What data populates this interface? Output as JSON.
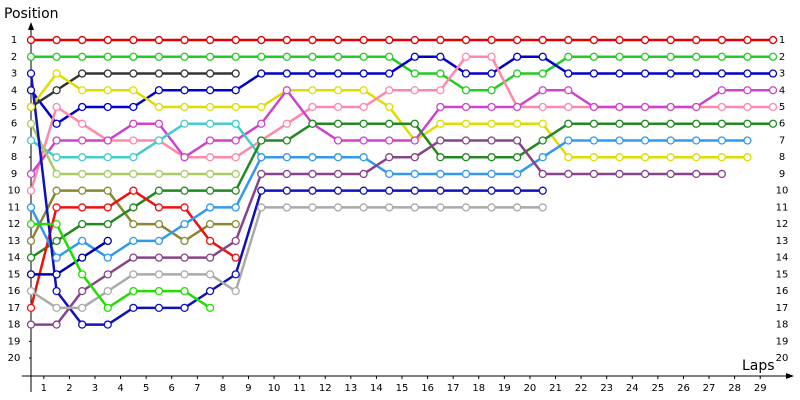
{
  "chart_data": {
    "type": "line",
    "y_label": "Position",
    "x_label": "Laps",
    "x": [
      0,
      1,
      2,
      3,
      4,
      5,
      6,
      7,
      8,
      9,
      10,
      11,
      12,
      13,
      14,
      15,
      16,
      17,
      18,
      19,
      20,
      21,
      22,
      23,
      24,
      25,
      26,
      27,
      28,
      29
    ],
    "xlim": [
      0,
      29
    ],
    "xticks": [
      {
        "value": 0.5,
        "label": "1"
      },
      {
        "value": 1.5,
        "label": "2"
      },
      {
        "value": 2.5,
        "label": "3"
      },
      {
        "value": 3.5,
        "label": "4"
      },
      {
        "value": 4.5,
        "label": "5"
      },
      {
        "value": 5.5,
        "label": "6"
      },
      {
        "value": 6.5,
        "label": "7"
      },
      {
        "value": 7.5,
        "label": "8"
      },
      {
        "value": 8.5,
        "label": "9"
      },
      {
        "value": 9.5,
        "label": "10"
      },
      {
        "value": 10.5,
        "label": "11"
      },
      {
        "value": 11.5,
        "label": "12"
      },
      {
        "value": 12.5,
        "label": "13"
      },
      {
        "value": 13.5,
        "label": "14"
      },
      {
        "value": 14.5,
        "label": "15"
      },
      {
        "value": 15.5,
        "label": "16"
      },
      {
        "value": 16.5,
        "label": "17"
      },
      {
        "value": 17.5,
        "label": "18"
      },
      {
        "value": 18.5,
        "label": "19"
      },
      {
        "value": 19.5,
        "label": "20"
      },
      {
        "value": 20.5,
        "label": "21"
      },
      {
        "value": 21.5,
        "label": "22"
      },
      {
        "value": 22.5,
        "label": "23"
      },
      {
        "value": 23.5,
        "label": "24"
      },
      {
        "value": 24.5,
        "label": "25"
      },
      {
        "value": 25.5,
        "label": "26"
      },
      {
        "value": 26.5,
        "label": "27"
      },
      {
        "value": 27.5,
        "label": "28"
      },
      {
        "value": 28.5,
        "label": "29"
      }
    ],
    "ylim": [
      0,
      21
    ],
    "inverted": true,
    "yticks": [
      1,
      2,
      3,
      4,
      5,
      6,
      7,
      8,
      9,
      10,
      11,
      12,
      13,
      14,
      15,
      16,
      17,
      18,
      19,
      20
    ],
    "series": [
      {
        "color": "#e00000",
        "values": [
          1,
          1,
          1,
          1,
          1,
          1,
          1,
          1,
          1,
          1,
          1,
          1,
          1,
          1,
          1,
          1,
          1,
          1,
          1,
          1,
          1,
          1,
          1,
          1,
          1,
          1,
          1,
          1,
          1,
          1
        ]
      },
      {
        "color": "#22cc22",
        "values": [
          2,
          2,
          2,
          2,
          2,
          2,
          2,
          2,
          2,
          2,
          2,
          2,
          2,
          2,
          2,
          3,
          3,
          4,
          4,
          3,
          3,
          2,
          2,
          2,
          2,
          2,
          2,
          2,
          2,
          2
        ]
      },
      {
        "color": "#0000cc",
        "values": [
          4,
          6,
          5,
          5,
          5,
          4,
          4,
          4,
          4,
          3,
          3,
          3,
          3,
          3,
          3,
          2,
          2,
          3,
          3,
          2,
          2,
          3,
          3,
          3,
          3,
          3,
          3,
          3,
          3,
          3
        ]
      },
      {
        "color": "#333333",
        "values": [
          5,
          4,
          3,
          3,
          3,
          3,
          3,
          3,
          3,
          null,
          null,
          null,
          null,
          null,
          null,
          null,
          null,
          null,
          null,
          null,
          null,
          null,
          null,
          null,
          null,
          null,
          null,
          null,
          null,
          null
        ]
      },
      {
        "color": "#dddd00",
        "values": [
          5,
          3,
          4,
          4,
          4,
          5,
          5,
          5,
          5,
          5,
          4,
          4,
          4,
          4,
          5,
          7,
          6,
          6,
          6,
          6,
          6,
          8,
          8,
          8,
          8,
          8,
          8,
          8,
          8,
          null
        ]
      },
      {
        "color": "#ff88aa",
        "values": [
          10,
          5,
          6,
          7,
          7,
          7,
          8,
          8,
          8,
          7,
          6,
          5,
          5,
          5,
          4,
          4,
          4,
          2,
          2,
          5,
          5,
          5,
          5,
          5,
          5,
          5,
          5,
          5,
          5,
          5
        ]
      },
      {
        "color": "#cc44cc",
        "values": [
          9,
          7,
          7,
          7,
          6,
          6,
          8,
          7,
          7,
          6,
          4,
          6,
          7,
          7,
          7,
          7,
          5,
          5,
          5,
          5,
          4,
          4,
          5,
          5,
          5,
          5,
          5,
          4,
          4,
          4
        ]
      },
      {
        "color": "#44cccc",
        "values": [
          7,
          8,
          8,
          8,
          8,
          7,
          6,
          6,
          6,
          8,
          null,
          null,
          null,
          null,
          null,
          null,
          null,
          null,
          null,
          null,
          null,
          null,
          null,
          null,
          null,
          null,
          null,
          null,
          null,
          null
        ]
      },
      {
        "color": "#aacc66",
        "values": [
          6,
          9,
          9,
          9,
          9,
          9,
          9,
          9,
          9,
          null,
          null,
          null,
          null,
          null,
          null,
          null,
          null,
          null,
          null,
          null,
          null,
          null,
          null,
          null,
          null,
          null,
          null,
          null,
          null,
          null
        ]
      },
      {
        "color": "#888833",
        "values": [
          13,
          10,
          10,
          10,
          12,
          12,
          13,
          12,
          12,
          null,
          null,
          null,
          null,
          null,
          null,
          null,
          null,
          null,
          null,
          null,
          null,
          null,
          null,
          null,
          null,
          null,
          null,
          null,
          null,
          null
        ]
      },
      {
        "color": "#228822",
        "values": [
          14,
          13,
          12,
          12,
          11,
          10,
          10,
          10,
          10,
          7,
          7,
          6,
          6,
          6,
          6,
          6,
          8,
          8,
          8,
          8,
          7,
          6,
          6,
          6,
          6,
          6,
          6,
          6,
          6,
          6
        ]
      },
      {
        "color": "#ee1111",
        "values": [
          17,
          11,
          11,
          11,
          10,
          11,
          11,
          13,
          14,
          null,
          null,
          null,
          null,
          null,
          null,
          null,
          null,
          null,
          null,
          null,
          null,
          null,
          null,
          null,
          null,
          null,
          null,
          null,
          null,
          null
        ]
      },
      {
        "color": "#3399ee",
        "values": [
          11,
          14,
          13,
          14,
          13,
          13,
          12,
          11,
          11,
          8,
          8,
          8,
          8,
          8,
          9,
          9,
          9,
          9,
          9,
          9,
          8,
          7,
          7,
          7,
          7,
          7,
          7,
          7,
          7,
          null
        ]
      },
      {
        "color": "#0000aa",
        "values": [
          15,
          15,
          14,
          13,
          null,
          null,
          null,
          null,
          null,
          null,
          null,
          null,
          null,
          null,
          null,
          null,
          null,
          null,
          null,
          null,
          null,
          null,
          null,
          null,
          null,
          null,
          null,
          null,
          null,
          null
        ]
      },
      {
        "color": "#1111bb",
        "values": [
          3,
          16,
          18,
          18,
          17,
          17,
          17,
          16,
          15,
          10,
          10,
          10,
          10,
          10,
          10,
          10,
          10,
          10,
          10,
          10,
          10,
          null,
          null,
          null,
          null,
          null,
          null,
          null,
          null,
          null
        ]
      },
      {
        "color": "#884488",
        "values": [
          18,
          18,
          16,
          15,
          14,
          14,
          14,
          14,
          13,
          9,
          9,
          9,
          9,
          9,
          8,
          8,
          7,
          7,
          7,
          7,
          9,
          9,
          9,
          9,
          9,
          9,
          9,
          9,
          null,
          null
        ]
      },
      {
        "color": "#aaaaaa",
        "values": [
          16,
          17,
          17,
          16,
          15,
          15,
          15,
          15,
          16,
          11,
          11,
          11,
          11,
          11,
          11,
          11,
          11,
          11,
          11,
          11,
          11,
          null,
          null,
          null,
          null,
          null,
          null,
          null,
          null,
          null
        ]
      },
      {
        "color": "#22dd00",
        "values": [
          12,
          12,
          15,
          17,
          16,
          16,
          16,
          17,
          null,
          null,
          null,
          null,
          null,
          null,
          null,
          null,
          null,
          null,
          null,
          null,
          null,
          null,
          null,
          null,
          null,
          null,
          null,
          null,
          null,
          null
        ]
      }
    ]
  }
}
